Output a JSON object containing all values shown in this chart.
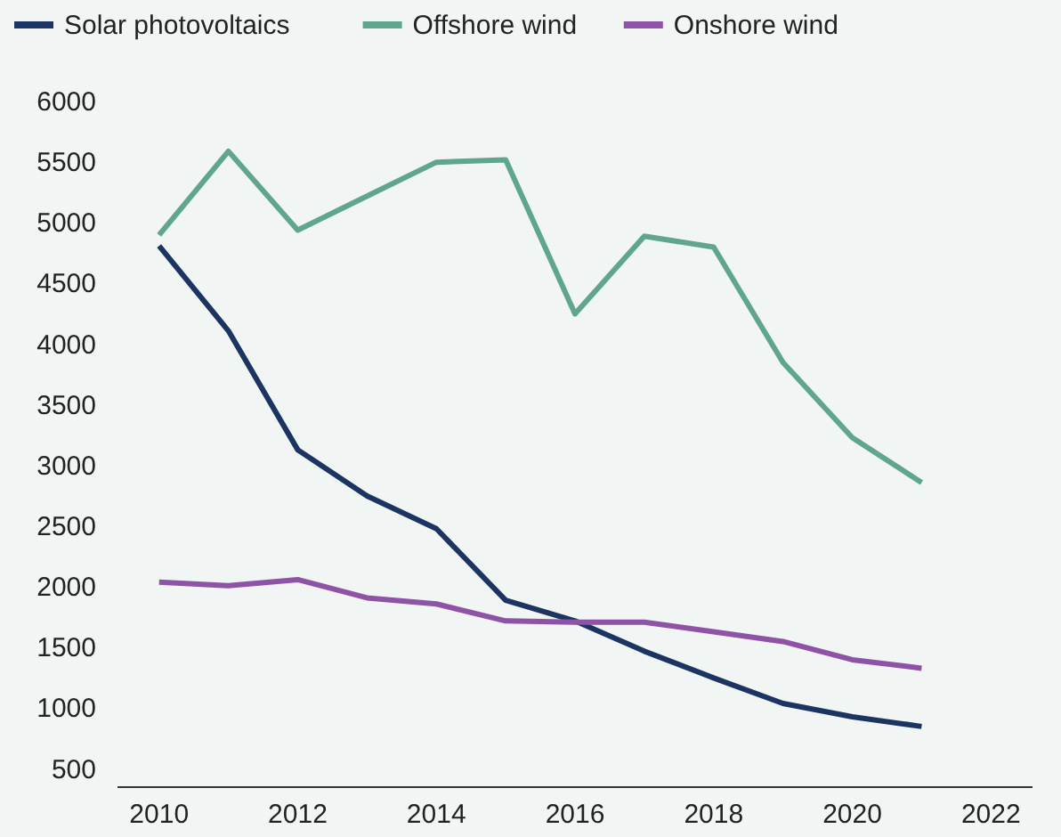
{
  "chart_data": {
    "type": "line",
    "x": [
      2010,
      2011,
      2012,
      2013,
      2014,
      2015,
      2016,
      2017,
      2018,
      2019,
      2020,
      2021
    ],
    "series": [
      {
        "name": "Solar photovoltaics",
        "color": "#1c3461",
        "values": [
          4810,
          4110,
          3130,
          2750,
          2480,
          1890,
          1720,
          1470,
          1250,
          1040,
          930,
          850
        ]
      },
      {
        "name": "Offshore wind",
        "color": "#5fa58f",
        "values": [
          4900,
          5590,
          4940,
          5220,
          5500,
          5520,
          4250,
          4890,
          4800,
          3850,
          3230,
          2860
        ]
      },
      {
        "name": "Onshore wind",
        "color": "#8e52a6",
        "values": [
          2040,
          2010,
          2060,
          1910,
          1860,
          1720,
          1710,
          1710,
          1630,
          1550,
          1400,
          1330
        ]
      }
    ],
    "xlim": [
      2009.4,
      2022.6
    ],
    "xticks": [
      2010,
      2012,
      2014,
      2016,
      2018,
      2020,
      2022
    ],
    "ylim": [
      350,
      6000
    ],
    "yticks": [
      500,
      1000,
      1500,
      2000,
      2500,
      3000,
      3500,
      4000,
      4500,
      5000,
      5500,
      6000
    ],
    "grid": false,
    "legend": "top",
    "marker": "none",
    "line_style": "solid"
  }
}
